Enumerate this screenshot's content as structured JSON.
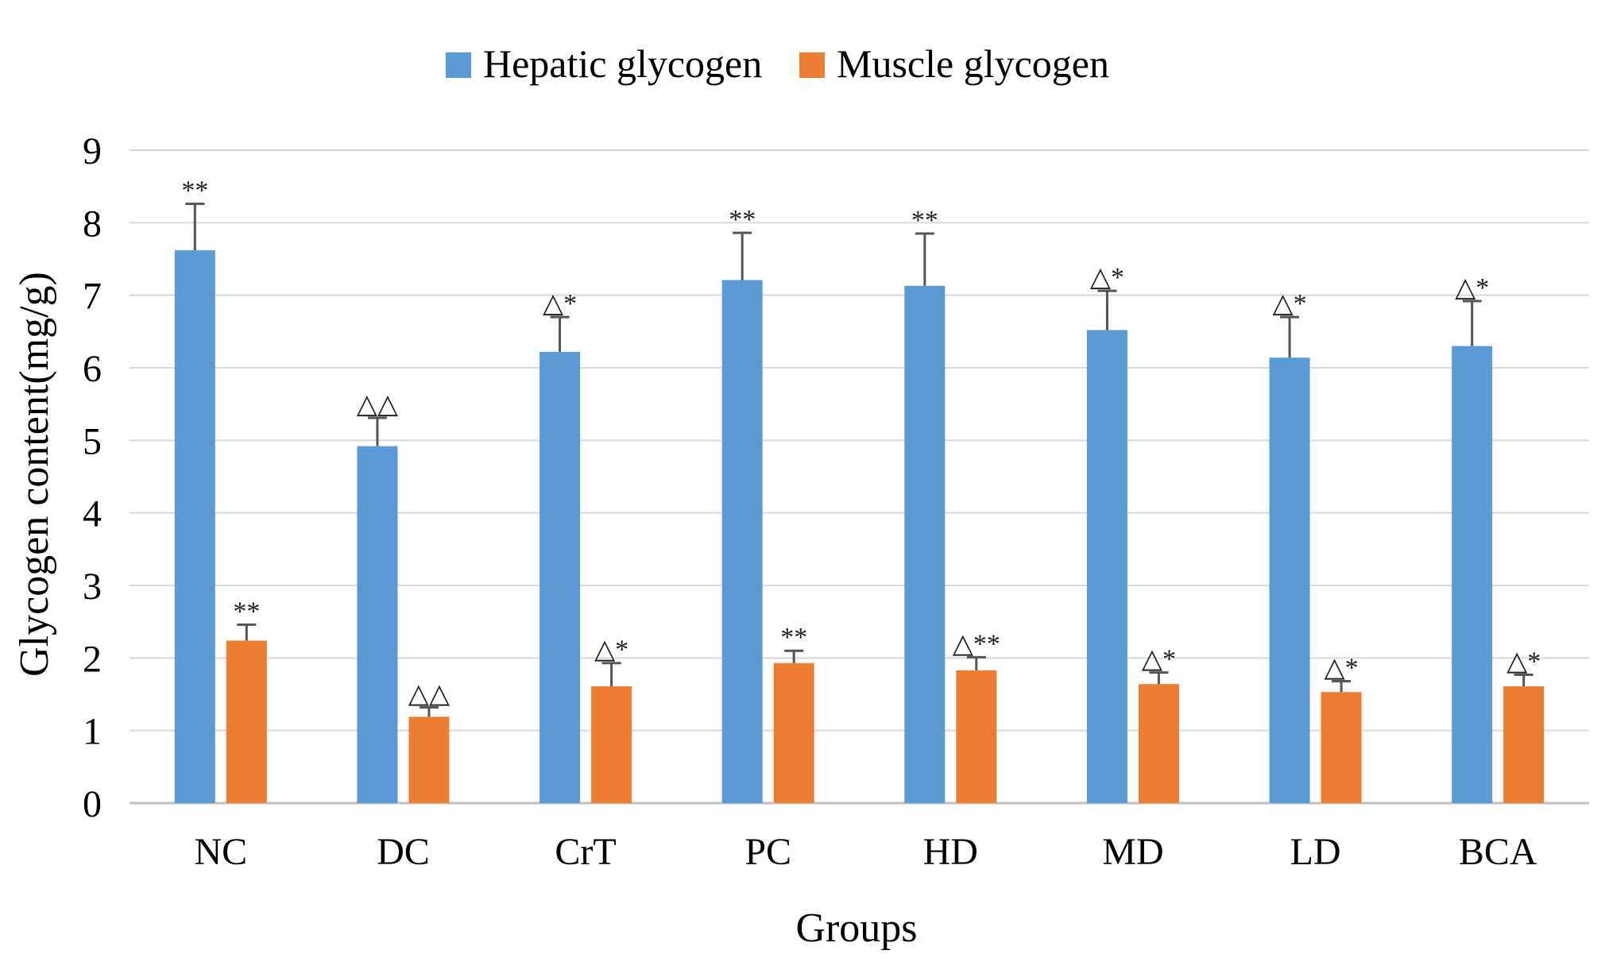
{
  "chart_data": {
    "type": "bar",
    "title": "",
    "xlabel": "Groups",
    "ylabel": "Glycogen content(mg/g)",
    "ylim": [
      0,
      9
    ],
    "yticks": [
      "0",
      "1",
      "2",
      "3",
      "4",
      "5",
      "6",
      "7",
      "8",
      "9"
    ],
    "grid": true,
    "legend_position": "top-center",
    "categories": [
      "NC",
      "DC",
      "CrT",
      "PC",
      "HD",
      "MD",
      "LD",
      "BCA"
    ],
    "series": [
      {
        "name": "Hepatic glycogen",
        "color": "#5b9bd5",
        "values": [
          7.62,
          4.92,
          6.22,
          7.21,
          7.13,
          6.52,
          6.14,
          6.3
        ],
        "errors": [
          0.64,
          0.39,
          0.48,
          0.65,
          0.72,
          0.54,
          0.56,
          0.62
        ],
        "labels": [
          "**",
          "△△",
          "△*",
          "**",
          "**",
          "△*",
          "△*",
          "△*"
        ]
      },
      {
        "name": "Muscle glycogen",
        "color": "#ed7d31",
        "values": [
          2.24,
          1.19,
          1.61,
          1.93,
          1.83,
          1.64,
          1.53,
          1.61
        ],
        "errors": [
          0.22,
          0.13,
          0.32,
          0.17,
          0.18,
          0.16,
          0.15,
          0.16
        ],
        "labels": [
          "**",
          "△△",
          "△*",
          "**",
          "△**",
          "△*",
          "△*",
          "△*"
        ]
      }
    ]
  },
  "colors": {
    "grid": "#d9d9d9",
    "axis": "#bfbfbf",
    "errorbar": "#555555"
  }
}
